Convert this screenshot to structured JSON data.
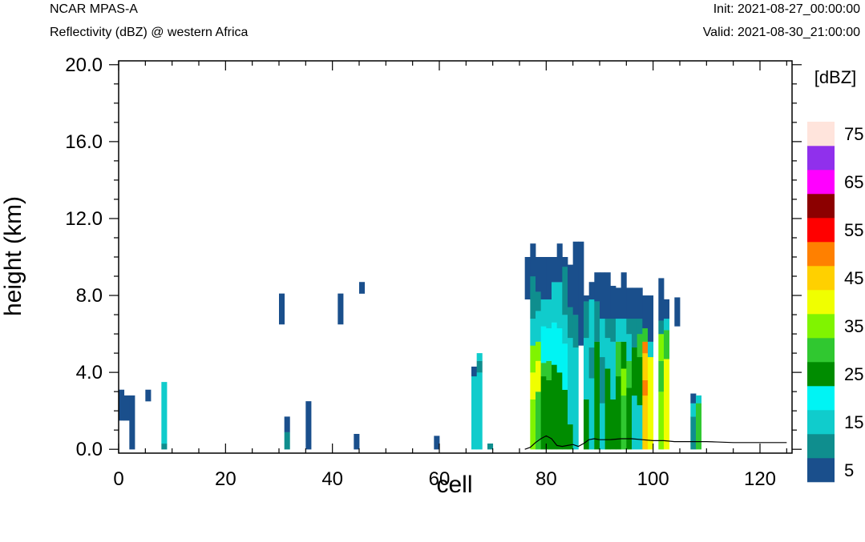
{
  "header": {
    "left_title": "NCAR MPAS-A",
    "left_subtitle": "Reflectivity (dBZ) @ western Africa",
    "init": "Init: 2021-08-27_00:00:00",
    "valid": "Valid: 2021-08-30_21:00:00"
  },
  "chart_data": {
    "type": "heatmap",
    "xlabel": "cell",
    "ylabel": "height (km)",
    "xlim": [
      0,
      126
    ],
    "ylim": [
      -0.2,
      20.2
    ],
    "xticks": [
      0,
      20,
      40,
      60,
      80,
      100,
      120
    ],
    "xtick_labels": [
      "0",
      "20",
      "40",
      "60",
      "80",
      "100",
      "120"
    ],
    "yticks": [
      0,
      4,
      8,
      12,
      16,
      20
    ],
    "ytick_labels": [
      "0.0",
      "4.0",
      "8.0",
      "12.0",
      "16.0",
      "20.0"
    ],
    "colorbar": {
      "title": "[dBZ]",
      "levels": [
        5,
        10,
        15,
        20,
        25,
        30,
        35,
        40,
        45,
        50,
        55,
        60,
        65,
        70,
        75
      ],
      "labels": [
        "5",
        "15",
        "25",
        "35",
        "45",
        "55",
        "65",
        "75"
      ],
      "colors": [
        "#1a4f8c",
        "#0f8e8e",
        "#10cccc",
        "#00f4f4",
        "#008c00",
        "#30c830",
        "#80f400",
        "#f0ff00",
        "#ffd000",
        "#ff8000",
        "#ff0000",
        "#8c0000",
        "#ff00ff",
        "#9030ec",
        "#ffe4dc"
      ]
    },
    "terrain": [
      [
        76,
        0
      ],
      [
        77,
        0.1
      ],
      [
        78,
        0.35
      ],
      [
        79,
        0.55
      ],
      [
        80,
        0.7
      ],
      [
        81,
        0.55
      ],
      [
        82,
        0.2
      ],
      [
        83,
        0.15
      ],
      [
        84,
        0.2
      ],
      [
        85,
        0.25
      ],
      [
        86,
        0.15
      ],
      [
        87,
        0.3
      ],
      [
        88,
        0.5
      ],
      [
        89,
        0.55
      ],
      [
        90,
        0.5
      ],
      [
        92,
        0.5
      ],
      [
        94,
        0.55
      ],
      [
        96,
        0.55
      ],
      [
        98,
        0.5
      ],
      [
        100,
        0.45
      ],
      [
        102,
        0.45
      ],
      [
        104,
        0.4
      ],
      [
        106,
        0.4
      ],
      [
        108,
        0.4
      ],
      [
        110,
        0.4
      ],
      [
        112,
        0.38
      ],
      [
        115,
        0.35
      ],
      [
        118,
        0.35
      ],
      [
        121,
        0.35
      ],
      [
        125,
        0.35
      ]
    ],
    "cells": [
      {
        "x": 0,
        "segments": [
          [
            1.5,
            3.1,
            5
          ]
        ]
      },
      {
        "x": 1,
        "segments": [
          [
            1.5,
            2.8,
            5
          ]
        ]
      },
      {
        "x": 2,
        "segments": [
          [
            0,
            2.8,
            5
          ]
        ]
      },
      {
        "x": 5,
        "segments": [
          [
            2.5,
            3.1,
            5
          ]
        ]
      },
      {
        "x": 8,
        "segments": [
          [
            0,
            0.3,
            10
          ],
          [
            0.3,
            3.5,
            15
          ]
        ]
      },
      {
        "x": 30,
        "segments": [
          [
            6.5,
            8.1,
            5
          ]
        ]
      },
      {
        "x": 31,
        "segments": [
          [
            0,
            0.9,
            10
          ],
          [
            0.9,
            1.7,
            5
          ]
        ]
      },
      {
        "x": 35,
        "segments": [
          [
            0,
            2.5,
            5
          ]
        ]
      },
      {
        "x": 41,
        "segments": [
          [
            6.5,
            8.1,
            5
          ]
        ]
      },
      {
        "x": 44,
        "segments": [
          [
            0,
            0.8,
            5
          ]
        ]
      },
      {
        "x": 45,
        "segments": [
          [
            8.1,
            8.7,
            5
          ]
        ]
      },
      {
        "x": 59,
        "segments": [
          [
            0,
            0.7,
            5
          ]
        ]
      },
      {
        "x": 66,
        "segments": [
          [
            0,
            3.8,
            15
          ],
          [
            3.8,
            4.3,
            5
          ]
        ]
      },
      {
        "x": 67,
        "segments": [
          [
            0,
            4.0,
            15
          ],
          [
            4.0,
            4.6,
            10
          ],
          [
            4.6,
            5.0,
            15
          ]
        ]
      },
      {
        "x": 69,
        "segments": [
          [
            0,
            0.3,
            10
          ]
        ]
      },
      {
        "x": 76,
        "segments": [
          [
            7.8,
            10.0,
            5
          ]
        ]
      },
      {
        "x": 77,
        "segments": [
          [
            0,
            2.6,
            35
          ],
          [
            2.6,
            4.0,
            40
          ],
          [
            4.0,
            5.4,
            35
          ],
          [
            5.4,
            6.8,
            15
          ],
          [
            6.8,
            9.0,
            10
          ],
          [
            9.0,
            10.7,
            5
          ]
        ]
      },
      {
        "x": 78,
        "segments": [
          [
            0,
            3.0,
            30
          ],
          [
            3.0,
            4.6,
            40
          ],
          [
            4.6,
            5.6,
            35
          ],
          [
            5.6,
            7.2,
            15
          ],
          [
            7.2,
            8.2,
            10
          ],
          [
            8.2,
            10.0,
            5
          ]
        ]
      },
      {
        "x": 79,
        "segments": [
          [
            0,
            3.8,
            25
          ],
          [
            3.8,
            4.5,
            30
          ],
          [
            4.5,
            6.4,
            20
          ],
          [
            6.4,
            7.8,
            15
          ],
          [
            7.8,
            10.0,
            5
          ]
        ]
      },
      {
        "x": 80,
        "segments": [
          [
            0,
            3.6,
            25
          ],
          [
            3.6,
            4.6,
            30
          ],
          [
            4.6,
            6.3,
            20
          ],
          [
            6.3,
            7.8,
            15
          ],
          [
            7.8,
            10.0,
            5
          ]
        ]
      },
      {
        "x": 81,
        "segments": [
          [
            0,
            4.4,
            25
          ],
          [
            4.4,
            6.6,
            20
          ],
          [
            6.6,
            8.7,
            15
          ],
          [
            8.7,
            10.0,
            5
          ]
        ]
      },
      {
        "x": 82,
        "segments": [
          [
            0,
            4.0,
            25
          ],
          [
            4.0,
            6.3,
            20
          ],
          [
            6.3,
            8.7,
            15
          ],
          [
            8.7,
            10.7,
            5
          ]
        ]
      },
      {
        "x": 83,
        "segments": [
          [
            0,
            3.1,
            25
          ],
          [
            3.1,
            5.5,
            20
          ],
          [
            5.5,
            7.0,
            15
          ],
          [
            7.0,
            9.5,
            10
          ],
          [
            9.5,
            10.0,
            5
          ]
        ]
      },
      {
        "x": 84,
        "segments": [
          [
            0,
            1.3,
            25
          ],
          [
            1.3,
            5.8,
            15
          ],
          [
            5.8,
            7.4,
            10
          ],
          [
            7.4,
            9.6,
            5
          ]
        ]
      },
      {
        "x": 85,
        "segments": [
          [
            0,
            5.3,
            15
          ],
          [
            5.3,
            7.0,
            10
          ],
          [
            7.0,
            10.8,
            5
          ]
        ]
      },
      {
        "x": 86,
        "segments": [
          [
            5.4,
            10.8,
            5
          ]
        ]
      },
      {
        "x": 87,
        "segments": [
          [
            0,
            2.6,
            25
          ],
          [
            2.6,
            5.8,
            15
          ],
          [
            5.8,
            7.7,
            10
          ],
          [
            7.7,
            8.0,
            5
          ]
        ]
      },
      {
        "x": 88,
        "segments": [
          [
            0,
            3.7,
            15
          ],
          [
            3.7,
            5.3,
            10
          ],
          [
            5.3,
            7.8,
            15
          ],
          [
            7.8,
            8.7,
            5
          ]
        ]
      },
      {
        "x": 89,
        "segments": [
          [
            0,
            5.6,
            25
          ],
          [
            5.6,
            7.7,
            10
          ],
          [
            7.7,
            9.2,
            5
          ]
        ]
      },
      {
        "x": 90,
        "segments": [
          [
            0,
            2.4,
            15
          ],
          [
            2.4,
            4.8,
            10
          ],
          [
            4.8,
            6.8,
            15
          ],
          [
            6.8,
            9.2,
            5
          ]
        ]
      },
      {
        "x": 91,
        "segments": [
          [
            0,
            4.2,
            25
          ],
          [
            4.2,
            5.8,
            15
          ],
          [
            5.8,
            6.8,
            10
          ],
          [
            6.8,
            9.2,
            5
          ]
        ]
      },
      {
        "x": 92,
        "segments": [
          [
            0,
            2.6,
            25
          ],
          [
            2.6,
            5.6,
            15
          ],
          [
            5.6,
            6.8,
            10
          ],
          [
            6.8,
            8.5,
            5
          ]
        ]
      },
      {
        "x": 93,
        "segments": [
          [
            0,
            3.8,
            25
          ],
          [
            3.8,
            5.6,
            30
          ],
          [
            5.6,
            6.8,
            15
          ],
          [
            6.8,
            8.4,
            5
          ]
        ]
      },
      {
        "x": 94,
        "segments": [
          [
            0,
            2.8,
            30
          ],
          [
            2.8,
            4.2,
            35
          ],
          [
            4.2,
            5.6,
            25
          ],
          [
            5.6,
            6.8,
            15
          ],
          [
            6.8,
            9.2,
            5
          ]
        ]
      },
      {
        "x": 95,
        "segments": [
          [
            0,
            3.2,
            25
          ],
          [
            3.2,
            4.6,
            30
          ],
          [
            4.6,
            6.0,
            15
          ],
          [
            6.0,
            6.8,
            10
          ],
          [
            6.8,
            8.4,
            5
          ]
        ]
      },
      {
        "x": 96,
        "segments": [
          [
            0,
            2.8,
            15
          ],
          [
            2.8,
            5.3,
            25
          ],
          [
            5.3,
            6.8,
            10
          ],
          [
            6.8,
            8.4,
            5
          ]
        ]
      },
      {
        "x": 97,
        "segments": [
          [
            0,
            2.3,
            15
          ],
          [
            2.3,
            4.8,
            25
          ],
          [
            4.8,
            6.0,
            30
          ],
          [
            6.0,
            6.8,
            10
          ],
          [
            6.8,
            8.4,
            5
          ]
        ]
      },
      {
        "x": 98,
        "segments": [
          [
            0,
            2.8,
            45
          ],
          [
            2.8,
            3.6,
            50
          ],
          [
            3.6,
            5.0,
            45
          ],
          [
            5.0,
            5.6,
            50
          ],
          [
            5.6,
            6.3,
            30
          ],
          [
            6.3,
            8.0,
            5
          ]
        ]
      },
      {
        "x": 99,
        "segments": [
          [
            0,
            4.8,
            40
          ],
          [
            4.8,
            5.6,
            15
          ],
          [
            5.6,
            8.0,
            5
          ]
        ]
      },
      {
        "x": 101,
        "segments": [
          [
            0,
            3.0,
            35
          ],
          [
            3.0,
            4.6,
            30
          ],
          [
            4.6,
            6.0,
            35
          ],
          [
            6.0,
            6.7,
            10
          ],
          [
            6.7,
            8.9,
            5
          ]
        ]
      },
      {
        "x": 102,
        "segments": [
          [
            0,
            4.7,
            40
          ],
          [
            4.7,
            6.2,
            30
          ],
          [
            6.2,
            6.8,
            15
          ],
          [
            6.8,
            7.8,
            5
          ]
        ]
      },
      {
        "x": 104,
        "segments": [
          [
            6.4,
            7.9,
            5
          ]
        ]
      },
      {
        "x": 107,
        "segments": [
          [
            0,
            1.7,
            10
          ],
          [
            1.7,
            2.4,
            15
          ],
          [
            2.4,
            2.9,
            5
          ]
        ]
      },
      {
        "x": 108,
        "segments": [
          [
            0,
            2.4,
            30
          ],
          [
            2.4,
            2.8,
            15
          ]
        ]
      }
    ]
  }
}
